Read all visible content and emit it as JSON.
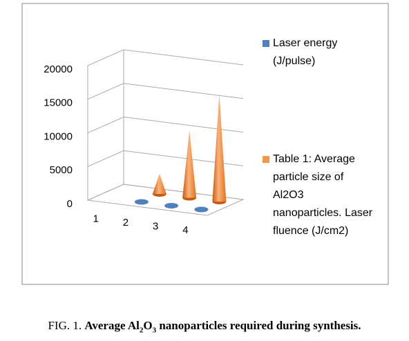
{
  "chart_data": {
    "type": "cone3d",
    "categories": [
      "1",
      "2",
      "3",
      "4"
    ],
    "series": [
      {
        "name": "Laser energy (J/pulse)",
        "color": "#4f81bd",
        "values": [
          null,
          0,
          0,
          0
        ]
      },
      {
        "name": "Table 1: Average particle size of Al2O3 nanoparticles. Laser fluence (J/cm2)",
        "color": "#f79646",
        "values": [
          null,
          3000,
          10000,
          16000
        ]
      }
    ],
    "ylim": [
      0,
      20000
    ],
    "yticks": [
      0,
      5000,
      10000,
      15000,
      20000
    ],
    "grid": true,
    "legend": "right"
  },
  "caption": {
    "prefix": "FIG. 1.",
    "parts": [
      "Average Al",
      "2",
      "O",
      "3",
      " nanoparticles required during synthesis."
    ]
  }
}
